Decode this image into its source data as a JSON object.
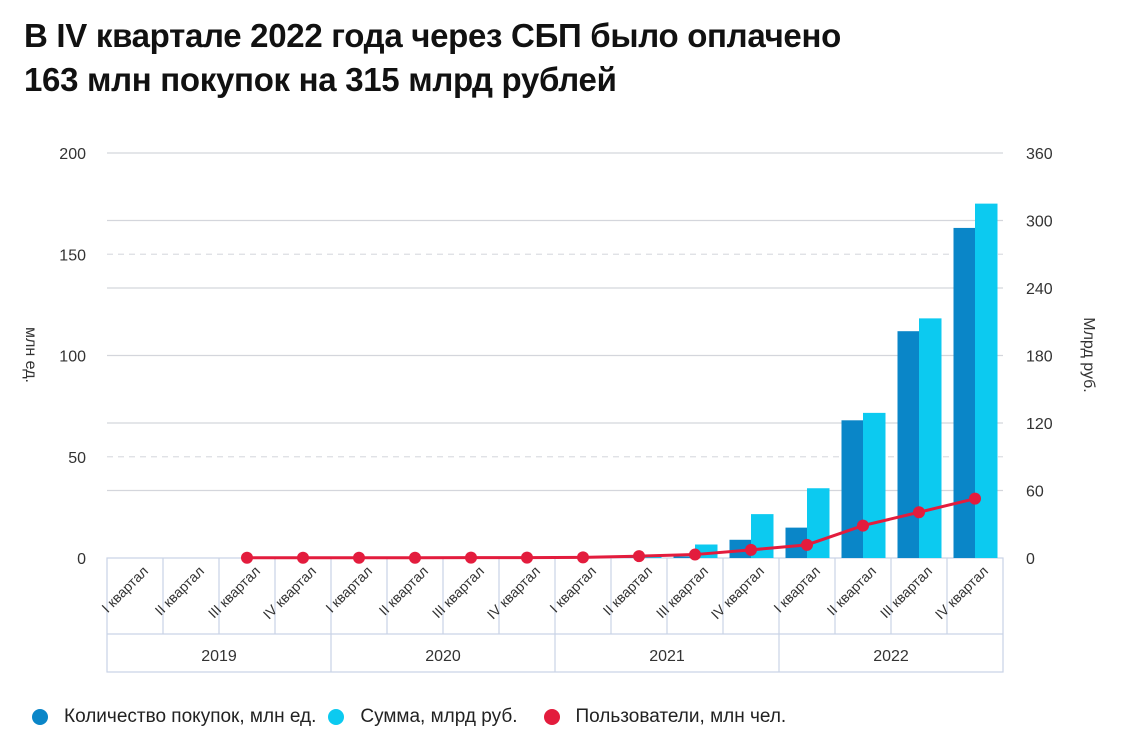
{
  "title": {
    "line1": "В IV квартале 2022 года через СБП было оплачено",
    "line2": "163 млн покупок на 315 млрд рублей"
  },
  "colors": {
    "purchases": "#0a86c8",
    "sum": "#0ccaf0",
    "users": "#e31c3d",
    "grid": "#d4d6dc",
    "axis_box": "#c9d3e6"
  },
  "legend": [
    {
      "label": "Количество покупок, млн ед.",
      "color": "#0a86c8"
    },
    {
      "label": "Сумма, млрд руб.",
      "color": "#0ccaf0"
    },
    {
      "label": "Пользователи, млн чел.",
      "color": "#e31c3d"
    }
  ],
  "chart_data": {
    "type": "bar",
    "title": "В IV квартале 2022 года через СБП было оплачено 163 млн покупок на 315 млрд рублей",
    "categories": [
      "I квартал",
      "II квартал",
      "III квартал",
      "IV квартал",
      "I квартал",
      "II квартал",
      "III квартал",
      "IV квартал",
      "I квартал",
      "II квартал",
      "III квартал",
      "IV квартал",
      "I квартал",
      "II квартал",
      "III квартал",
      "IV квартал"
    ],
    "groups": [
      {
        "label": "2019",
        "span": 4
      },
      {
        "label": "2020",
        "span": 4
      },
      {
        "label": "2021",
        "span": 4
      },
      {
        "label": "2022",
        "span": 4
      }
    ],
    "ylabel_left": "млн ед.",
    "ylabel_right": "Млрд руб.",
    "ylim_left": [
      0,
      200
    ],
    "ylim_right": [
      0,
      360
    ],
    "yticks_left": [
      0,
      50,
      100,
      150,
      200
    ],
    "yticks_right": [
      0,
      60,
      120,
      180,
      240,
      300,
      360
    ],
    "grid": true,
    "legend_position": "bottom",
    "series": [
      {
        "name": "Количество покупок, млн ед.",
        "type": "bar",
        "axis": "left",
        "values": [
          0,
          0,
          0,
          0,
          0,
          0,
          0,
          0,
          0,
          0.3,
          0.8,
          9,
          15,
          68,
          112,
          163
        ]
      },
      {
        "name": "Сумма, млрд руб.",
        "type": "bar",
        "axis": "right",
        "values": [
          0,
          0,
          0,
          0,
          0,
          0,
          0,
          0,
          0,
          2,
          12,
          39,
          62,
          129,
          213,
          315
        ]
      },
      {
        "name": "Пользователи, млн чел.",
        "type": "line",
        "axis": "left",
        "values": [
          null,
          null,
          0.1,
          0.1,
          0.1,
          0.1,
          0.2,
          0.2,
          0.3,
          0.9,
          1.7,
          4,
          6.5,
          16,
          22.6,
          29.3
        ]
      }
    ]
  }
}
